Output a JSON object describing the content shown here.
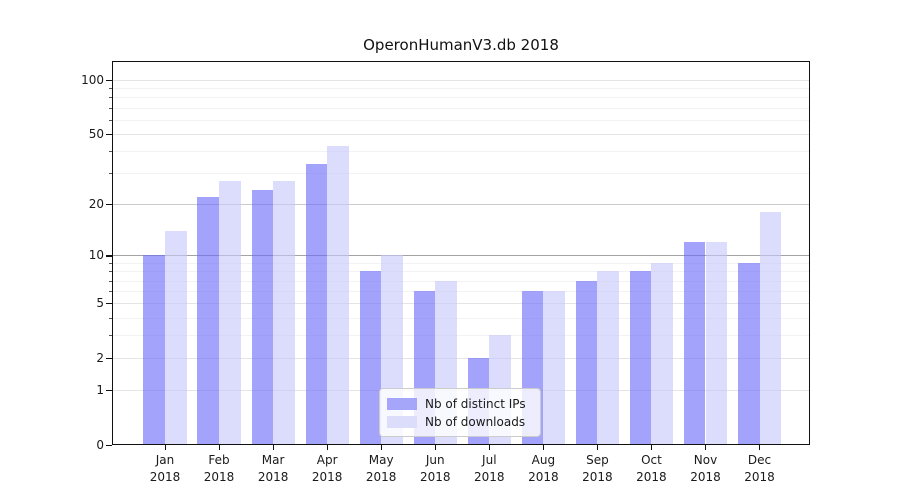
{
  "chart_data": {
    "type": "bar",
    "title": "OperonHumanV3.db 2018",
    "categories": [
      "Jan",
      "Feb",
      "Mar",
      "Apr",
      "May",
      "Jun",
      "Jul",
      "Aug",
      "Sep",
      "Oct",
      "Nov",
      "Dec"
    ],
    "year_label": "2018",
    "series": [
      {
        "name": "Nb of distinct IPs",
        "color": "#a5a5f9",
        "values": [
          10,
          22,
          24,
          34,
          8,
          6,
          2,
          6,
          7,
          8,
          12,
          9
        ]
      },
      {
        "name": "Nb of downloads",
        "color": "#dcdcfb",
        "values": [
          14,
          27,
          27,
          43,
          10,
          7,
          3,
          6,
          8,
          9,
          12,
          18
        ]
      }
    ],
    "yscale": "log1p",
    "ylim": [
      0,
      130
    ],
    "yticks": [
      100,
      50,
      20,
      10,
      5,
      2,
      1,
      0
    ],
    "ytick_labels": [
      "100",
      "50",
      "20",
      "10",
      "5",
      "2",
      "1",
      "0"
    ],
    "minor_yticks": [
      3,
      4,
      6,
      7,
      8,
      9,
      30,
      40,
      60,
      70,
      80,
      90
    ],
    "grid": "on",
    "legend_position": "lower center",
    "colors": {
      "bar_dark_rgba": "rgba(106,106,248,0.62)",
      "bar_light_rgba": "rgba(199,199,252,0.62)",
      "major_grid": "#e4e4e4",
      "minor_grid": "#f2f2f2",
      "grid_10": "#a3a3a3",
      "grid_20": "#cbcbcb",
      "spine": "#111111"
    }
  }
}
